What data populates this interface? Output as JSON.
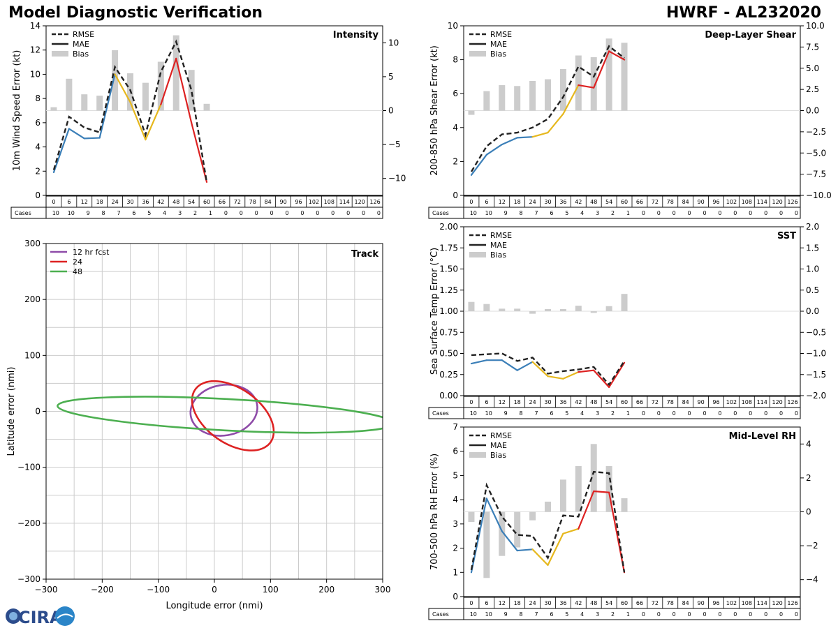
{
  "header": {
    "title": "Model Diagnostic Verification",
    "model_storm": "HWRF - AL232020"
  },
  "logo": {
    "text": "CIRA"
  },
  "legend": {
    "rmse": "RMSE",
    "mae": "MAE",
    "bias": "Bias"
  },
  "cases_label": "Cases",
  "hours": [
    "0",
    "6",
    "12",
    "18",
    "24",
    "30",
    "36",
    "42",
    "48",
    "54",
    "60",
    "66",
    "72",
    "78",
    "84",
    "90",
    "96",
    "102",
    "108",
    "114",
    "120",
    "126"
  ],
  "colors": {
    "early": "#3b7fb8",
    "mid": "#e6b81e",
    "late": "#dd2222",
    "bias": "#cccccc",
    "grid": "#cccccc",
    "dash": "#222222"
  },
  "chart_data": [
    {
      "id": "intensity",
      "type": "line",
      "title": "Intensity",
      "ylabel": "10m Wind Speed Error (kt)",
      "ylim": [
        0,
        14
      ],
      "yticks": [
        "0",
        "2",
        "4",
        "6",
        "8",
        "10",
        "12",
        "14"
      ],
      "y2lim": [
        -12.5,
        12.5
      ],
      "y2ticks": [
        "−10",
        "−5",
        "0",
        "5",
        "10"
      ],
      "x": [
        0,
        6,
        12,
        18,
        24,
        30,
        36,
        42,
        48,
        54,
        60
      ],
      "rmse": [
        2.1,
        6.5,
        5.6,
        5.2,
        10.6,
        8.7,
        5.0,
        10.2,
        12.7,
        8.7,
        1.1
      ],
      "mae": [
        1.9,
        5.5,
        4.7,
        4.75,
        10.0,
        7.7,
        4.6,
        7.5,
        11.3,
        6.0,
        1.1
      ],
      "bias": [
        0.5,
        4.7,
        2.4,
        2.2,
        8.9,
        5.5,
        4.1,
        7.2,
        11.1,
        6.0,
        1.0
      ],
      "cases": [
        "10",
        "10",
        "9",
        "8",
        "7",
        "6",
        "5",
        "4",
        "3",
        "2",
        "1",
        "0",
        "0",
        "0",
        "0",
        "0",
        "0",
        "0",
        "0",
        "0",
        "0",
        "0"
      ]
    },
    {
      "id": "shear",
      "type": "line",
      "title": "Deep-Layer Shear",
      "ylabel": "200-850 hPa Shear Error (kt)",
      "ylim": [
        0,
        10
      ],
      "yticks": [
        "0",
        "2",
        "4",
        "6",
        "8",
        "10"
      ],
      "y2lim": [
        -10,
        10
      ],
      "y2ticks": [
        "−10.0",
        "−7.5",
        "−5.0",
        "−2.5",
        "0.0",
        "2.5",
        "5.0",
        "7.5",
        "10.0"
      ],
      "x": [
        0,
        6,
        12,
        18,
        24,
        30,
        36,
        42,
        48,
        54,
        60
      ],
      "rmse": [
        1.4,
        2.9,
        3.6,
        3.7,
        4.0,
        4.5,
        5.8,
        7.6,
        7.0,
        8.8,
        8.1
      ],
      "mae": [
        1.2,
        2.4,
        3.0,
        3.4,
        3.45,
        3.7,
        4.8,
        6.5,
        6.35,
        8.5,
        8.0
      ],
      "bias": [
        -0.5,
        2.3,
        3.0,
        2.9,
        3.5,
        3.7,
        4.9,
        6.5,
        6.3,
        8.5,
        8.0
      ],
      "cases": [
        "10",
        "10",
        "9",
        "8",
        "7",
        "6",
        "5",
        "4",
        "3",
        "2",
        "1",
        "0",
        "0",
        "0",
        "0",
        "0",
        "0",
        "0",
        "0",
        "0",
        "0",
        "0"
      ]
    },
    {
      "id": "sst",
      "type": "line",
      "title": "SST",
      "ylabel": "Sea Surface Temp Error (°C)",
      "ylim": [
        0,
        2
      ],
      "yticks": [
        "0.00",
        "0.25",
        "0.50",
        "0.75",
        "1.00",
        "1.25",
        "1.50",
        "1.75",
        "2.00"
      ],
      "y2lim": [
        -2,
        2
      ],
      "y2ticks": [
        "−2.0",
        "−1.5",
        "−1.0",
        "−0.5",
        "0.0",
        "0.5",
        "1.0",
        "1.5",
        "2.0"
      ],
      "x": [
        0,
        6,
        12,
        18,
        24,
        30,
        36,
        42,
        48,
        54,
        60
      ],
      "rmse": [
        0.48,
        0.49,
        0.5,
        0.41,
        0.45,
        0.26,
        0.29,
        0.31,
        0.34,
        0.13,
        0.41
      ],
      "mae": [
        0.38,
        0.42,
        0.42,
        0.3,
        0.4,
        0.23,
        0.2,
        0.28,
        0.3,
        0.1,
        0.39
      ],
      "bias": [
        0.22,
        0.17,
        0.06,
        0.06,
        -0.06,
        0.05,
        0.05,
        0.13,
        -0.04,
        0.12,
        0.41
      ],
      "cases": [
        "10",
        "10",
        "9",
        "8",
        "7",
        "6",
        "5",
        "4",
        "3",
        "2",
        "1",
        "0",
        "0",
        "0",
        "0",
        "0",
        "0",
        "0",
        "0",
        "0",
        "0",
        "0"
      ]
    },
    {
      "id": "rh",
      "type": "line",
      "title": "Mid-Level RH",
      "ylabel": "700-500 hPa RH Error (%)",
      "ylim": [
        0,
        7
      ],
      "yticks": [
        "0",
        "1",
        "2",
        "3",
        "4",
        "5",
        "6",
        "7"
      ],
      "y2lim": [
        -5,
        5
      ],
      "y2ticks": [
        "−4",
        "−2",
        "0",
        "2",
        "4"
      ],
      "x": [
        0,
        6,
        12,
        18,
        24,
        30,
        36,
        42,
        48,
        54,
        60
      ],
      "rmse": [
        1.1,
        4.6,
        3.3,
        2.55,
        2.5,
        1.6,
        3.35,
        3.3,
        5.15,
        5.1,
        1.0
      ],
      "mae": [
        1.0,
        4.05,
        2.7,
        1.9,
        1.95,
        1.3,
        2.6,
        2.8,
        4.35,
        4.3,
        1.0
      ],
      "bias": [
        -0.6,
        -3.9,
        -2.6,
        -2.1,
        -0.5,
        0.6,
        1.9,
        2.7,
        4.0,
        2.7,
        0.8
      ],
      "cases": [
        "10",
        "10",
        "9",
        "8",
        "7",
        "6",
        "5",
        "4",
        "3",
        "2",
        "1",
        "0",
        "0",
        "0",
        "0",
        "0",
        "0",
        "0",
        "0",
        "0",
        "0",
        "0"
      ]
    },
    {
      "id": "track",
      "type": "scatter",
      "title": "Track",
      "xlabel": "Longitude error (nmi)",
      "ylabel": "Latitude error (nmi)",
      "xlim": [
        -300,
        300
      ],
      "ylim": [
        -300,
        300
      ],
      "xticks": [
        "−300",
        "−200",
        "−100",
        "0",
        "100",
        "200",
        "300"
      ],
      "yticks": [
        "−300",
        "−200",
        "−100",
        "0",
        "100",
        "200",
        "300"
      ],
      "ellipses": [
        {
          "label": "12 hr fcst",
          "color": "#8e4ba8",
          "cx": 17,
          "cy": 2,
          "rx": 60,
          "ry": 45,
          "angle": 10
        },
        {
          "label": "24",
          "color": "#dd2222",
          "cx": 33,
          "cy": -8,
          "rx": 82,
          "ry": 49,
          "angle": -35
        },
        {
          "label": "48",
          "color": "#4caf50",
          "cx": 20,
          "cy": -6,
          "rx": 300,
          "ry": 28,
          "angle": -3
        }
      ]
    }
  ]
}
